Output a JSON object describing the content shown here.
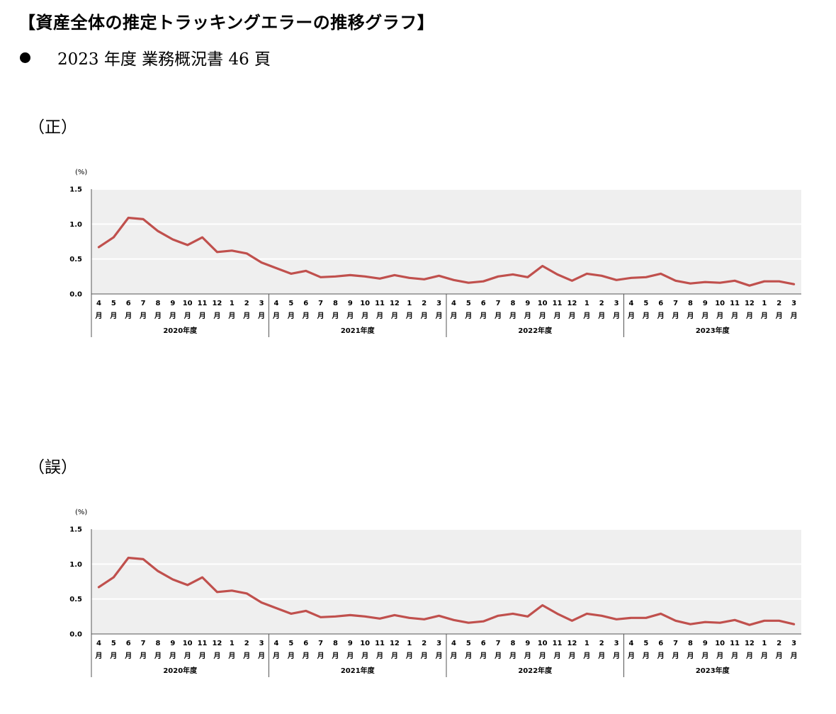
{
  "header": {
    "title": "【資産全体の推定トラッキングエラーの推移グラフ】",
    "bullet_text": "2023 年度  業務概況書 46 頁"
  },
  "sections": [
    {
      "label": "（正）"
    },
    {
      "label": "（誤）"
    }
  ],
  "colors": {
    "line": "#c0504d",
    "plot_bg": "#efefef",
    "grid": "#ffffff"
  },
  "chart_data": [
    {
      "type": "line",
      "unit_label": "(%)",
      "ylim": [
        0,
        1.5
      ],
      "yticks": [
        "0.0",
        "0.5",
        "1.0",
        "1.5"
      ],
      "month_labels": [
        "4",
        "5",
        "6",
        "7",
        "8",
        "9",
        "10",
        "11",
        "12",
        "1",
        "2",
        "3"
      ],
      "month_suffix": "月",
      "years": [
        "2020年度",
        "2021年度",
        "2022年度",
        "2023年度"
      ],
      "grid": true,
      "series": [
        {
          "values": [
            0.67,
            0.81,
            1.09,
            1.07,
            0.9,
            0.78,
            0.7,
            0.81,
            0.6,
            0.62,
            0.58,
            0.45,
            0.37,
            0.29,
            0.33,
            0.24,
            0.25,
            0.27,
            0.25,
            0.22,
            0.27,
            0.23,
            0.21,
            0.26,
            0.2,
            0.16,
            0.18,
            0.25,
            0.28,
            0.24,
            0.4,
            0.28,
            0.19,
            0.29,
            0.26,
            0.2,
            0.23,
            0.24,
            0.29,
            0.19,
            0.15,
            0.17,
            0.16,
            0.19,
            0.12,
            0.18,
            0.18,
            0.14
          ]
        }
      ]
    },
    {
      "type": "line",
      "unit_label": "(%)",
      "ylim": [
        0,
        1.5
      ],
      "yticks": [
        "0.0",
        "0.5",
        "1.0",
        "1.5"
      ],
      "month_labels": [
        "4",
        "5",
        "6",
        "7",
        "8",
        "9",
        "10",
        "11",
        "12",
        "1",
        "2",
        "3"
      ],
      "month_suffix": "月",
      "years": [
        "2020年度",
        "2021年度",
        "2022年度",
        "2023年度"
      ],
      "grid": true,
      "series": [
        {
          "values": [
            0.67,
            0.81,
            1.09,
            1.07,
            0.9,
            0.78,
            0.7,
            0.81,
            0.6,
            0.62,
            0.58,
            0.45,
            0.37,
            0.29,
            0.33,
            0.24,
            0.25,
            0.27,
            0.25,
            0.22,
            0.27,
            0.23,
            0.21,
            0.26,
            0.2,
            0.16,
            0.18,
            0.26,
            0.29,
            0.25,
            0.41,
            0.29,
            0.19,
            0.29,
            0.26,
            0.21,
            0.23,
            0.23,
            0.29,
            0.19,
            0.14,
            0.17,
            0.16,
            0.2,
            0.13,
            0.19,
            0.19,
            0.14
          ]
        }
      ]
    }
  ]
}
